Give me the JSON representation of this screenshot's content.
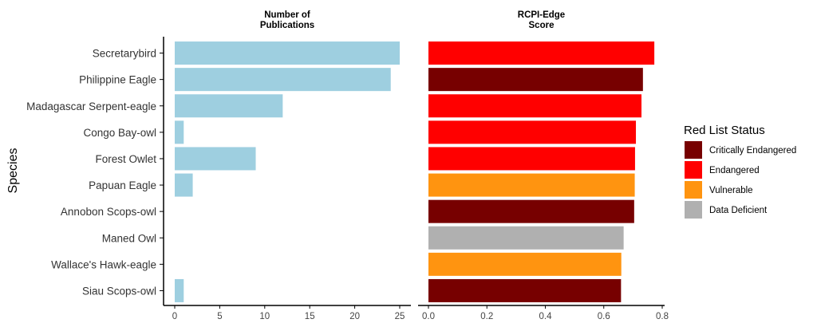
{
  "chart_data": {
    "type": "bar",
    "orientation": "horizontal",
    "ylabel": "Species",
    "categories": [
      "Secretarybird",
      "Philippine Eagle",
      "Madagascar Serpent-eagle",
      "Congo Bay-owl",
      "Forest Owlet",
      "Papuan Eagle",
      "Annobon Scops-owl",
      "Maned Owl",
      "Wallace's Hawk-eagle",
      "Siau Scops-owl"
    ],
    "panels": [
      {
        "title_lines": [
          "Number of",
          "Publications"
        ],
        "values": [
          25,
          24,
          12,
          1,
          9,
          2,
          0,
          0,
          0,
          1
        ],
        "xlim": [
          0,
          27
        ],
        "ticks": [
          0,
          5,
          10,
          15,
          20,
          25
        ],
        "tick_labels": [
          "0",
          "5",
          "10",
          "15",
          "20",
          "25"
        ],
        "color": "#9ecfe0"
      },
      {
        "title_lines": [
          "RCPI-Edge",
          "Score"
        ],
        "values": [
          0.773,
          0.734,
          0.729,
          0.71,
          0.707,
          0.706,
          0.704,
          0.668,
          0.66,
          0.659
        ],
        "xlim": [
          0,
          0.81
        ],
        "ticks": [
          0,
          0.2,
          0.4,
          0.6,
          0.8
        ],
        "tick_labels": [
          "0.0",
          "0.2",
          "0.4",
          "0.6",
          "0.8"
        ],
        "status": [
          "Endangered",
          "Critically Endangered",
          "Endangered",
          "Endangered",
          "Endangered",
          "Vulnerable",
          "Critically Endangered",
          "Data Deficient",
          "Vulnerable",
          "Critically Endangered"
        ]
      }
    ],
    "legend": {
      "title": "Red List Status",
      "position": "right",
      "entries": [
        {
          "label": "Critically Endangered",
          "color": "#770000"
        },
        {
          "label": "Endangered",
          "color": "#ff0000"
        },
        {
          "label": "Vulnerable",
          "color": "#ff9410"
        },
        {
          "label": "Data Deficient",
          "color": "#b0b0b0"
        }
      ]
    }
  }
}
